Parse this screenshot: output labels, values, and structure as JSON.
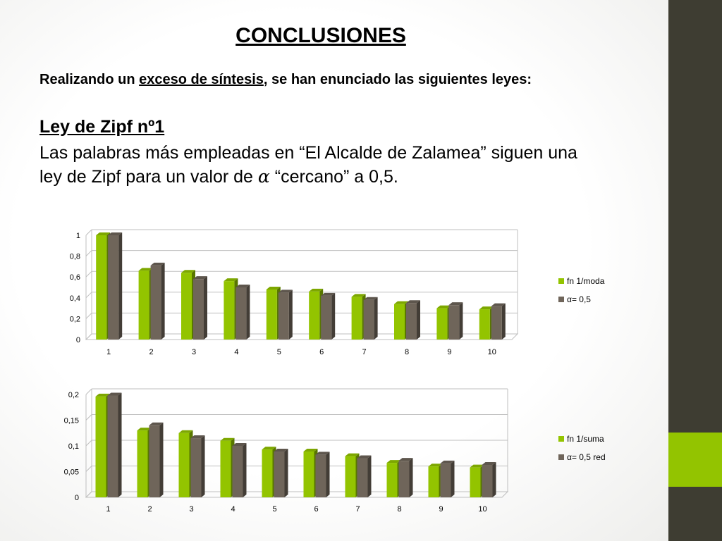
{
  "slide": {
    "title": "CONCLUSIONES",
    "intro_pre": "Realizando un ",
    "intro_underlined": "exceso de síntesis",
    "intro_post": ", se han enunciado las siguientes leyes:",
    "law_heading": "Ley de Zipf nº1",
    "law_text_line1": "Las palabras más empleadas en “El Alcalde de Zalamea” siguen una",
    "law_text_line2_pre": "ley de Zipf para un valor de ",
    "law_text_alpha": "𝛼",
    "law_text_line2_post": " “cercano” a 0,5.",
    "colors": {
      "green": "#93c400",
      "gray": "#6f655a",
      "sidebar": "#3e3d32"
    }
  },
  "chart_data": [
    {
      "type": "bar",
      "categories": [
        "1",
        "2",
        "3",
        "4",
        "5",
        "6",
        "7",
        "8",
        "9",
        "10"
      ],
      "series": [
        {
          "name": "fn 1/moda",
          "values": [
            1.0,
            0.66,
            0.64,
            0.56,
            0.48,
            0.46,
            0.41,
            0.34,
            0.3,
            0.29
          ]
        },
        {
          "name": "α= 0,5",
          "values": [
            1.0,
            0.71,
            0.58,
            0.5,
            0.45,
            0.42,
            0.38,
            0.35,
            0.33,
            0.32
          ]
        }
      ],
      "yticks": [
        "0",
        "0,2",
        "0,4",
        "0,6",
        "0,8",
        "1"
      ],
      "ylim": [
        0,
        1
      ],
      "grid": true,
      "legend": "right"
    },
    {
      "type": "bar",
      "categories": [
        "1",
        "2",
        "3",
        "4",
        "5",
        "6",
        "7",
        "8",
        "9",
        "10"
      ],
      "series": [
        {
          "name": "fn 1/suma",
          "values": [
            0.196,
            0.13,
            0.125,
            0.11,
            0.093,
            0.089,
            0.08,
            0.067,
            0.06,
            0.058
          ]
        },
        {
          "name": "α= 0,5 red",
          "values": [
            0.198,
            0.14,
            0.115,
            0.1,
            0.089,
            0.083,
            0.076,
            0.071,
            0.066,
            0.063
          ]
        }
      ],
      "yticks": [
        "0",
        "0,05",
        "0,1",
        "0,15",
        "0,2"
      ],
      "ylim": [
        0,
        0.2
      ],
      "grid": true,
      "legend": "right"
    }
  ]
}
